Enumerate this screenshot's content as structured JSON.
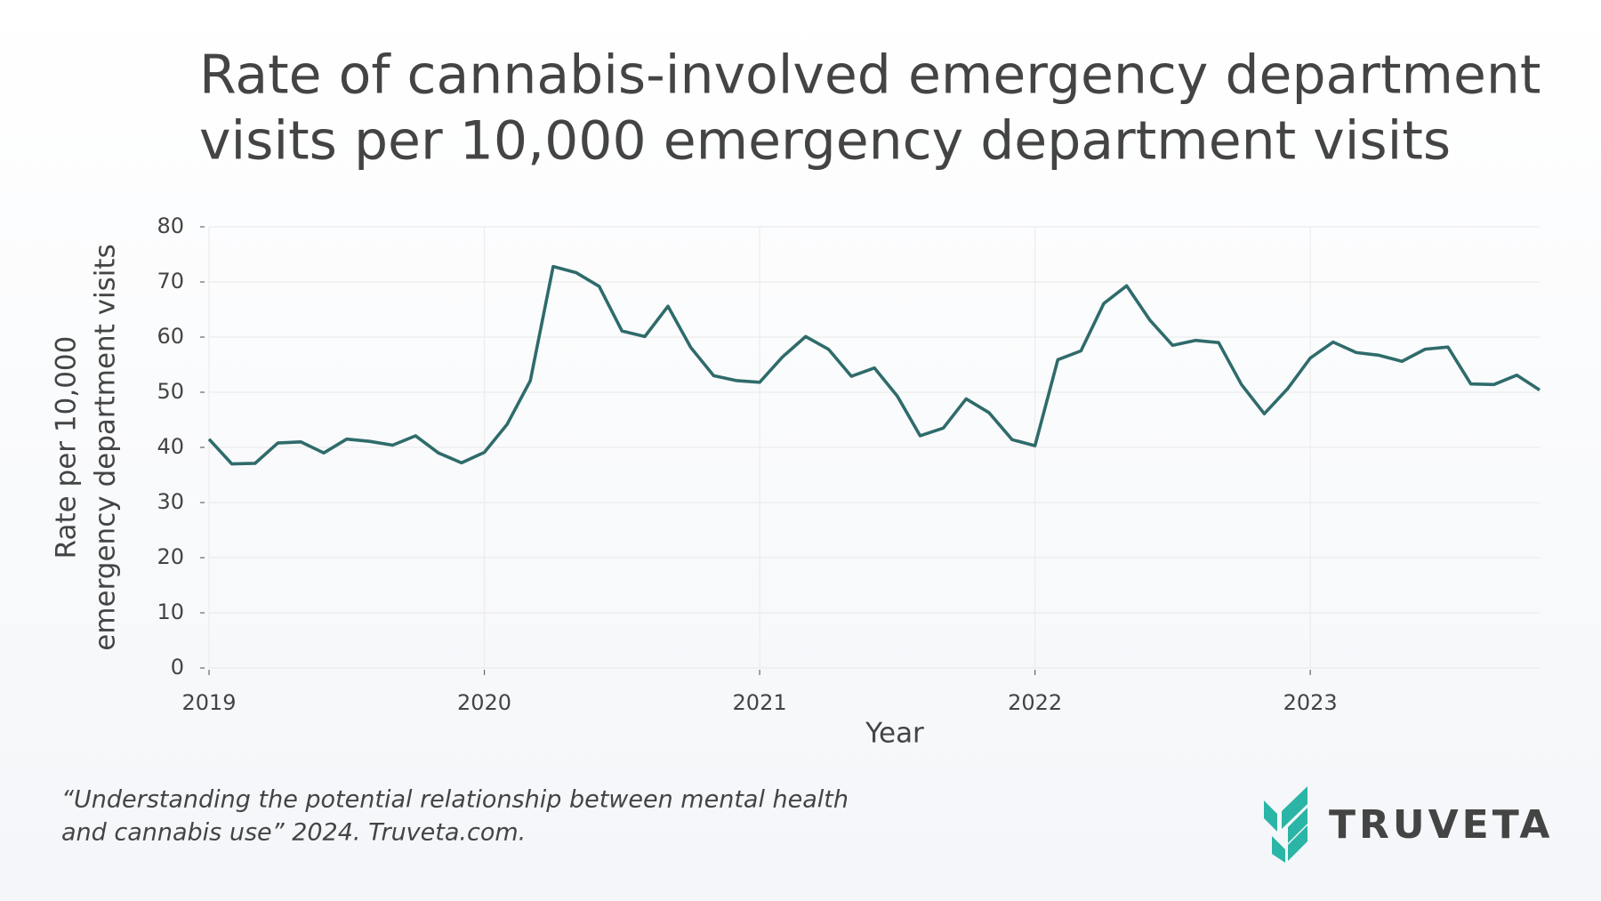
{
  "chart_data": {
    "type": "line",
    "title": [
      "Rate of cannabis-involved emergency department",
      "visits per 10,000 emergency department visits"
    ],
    "x_label": "Year",
    "y_label": [
      "Rate per 10,000",
      "emergency department visits"
    ],
    "x": [
      2019.0,
      2019.083,
      2019.167,
      2019.25,
      2019.333,
      2019.417,
      2019.5,
      2019.583,
      2019.667,
      2019.75,
      2019.833,
      2019.917,
      2020.0,
      2020.083,
      2020.167,
      2020.25,
      2020.333,
      2020.417,
      2020.5,
      2020.583,
      2020.667,
      2020.75,
      2020.833,
      2020.917,
      2021.0,
      2021.083,
      2021.167,
      2021.25,
      2021.333,
      2021.417,
      2021.5,
      2021.583,
      2021.667,
      2021.75,
      2021.833,
      2021.917,
      2022.0,
      2022.083,
      2022.167,
      2022.25,
      2022.333,
      2022.417,
      2022.5,
      2022.583,
      2022.667,
      2022.75,
      2022.833,
      2022.917,
      2023.0,
      2023.083,
      2023.167,
      2023.25,
      2023.333,
      2023.417,
      2023.5,
      2023.583,
      2023.667,
      2023.75,
      2023.833
    ],
    "series": [
      {
        "color": "#2f6b6b",
        "values": [
          41.5,
          37,
          37.1,
          40.8,
          41,
          39,
          41.5,
          41.1,
          40.4,
          42.1,
          39,
          37.2,
          39.1,
          44.2,
          52.1,
          72.8,
          71.7,
          69.2,
          61.1,
          60.1,
          65.6,
          58.1,
          53,
          52.1,
          51.8,
          56.4,
          60.1,
          57.8,
          52.9,
          54.4,
          49.3,
          42.1,
          43.5,
          48.8,
          46.3,
          41.4,
          40.3,
          55.9,
          57.5,
          66.1,
          69.3,
          63.1,
          58.5,
          59.4,
          59,
          51.4,
          46.1,
          50.6,
          56.2,
          59.1,
          57.2,
          56.7,
          55.6,
          57.8,
          58.2,
          51.5,
          51.4,
          53.1,
          50.4
        ]
      }
    ],
    "xlim": [
      2019,
      2023.833
    ],
    "xticks": [
      2019,
      2020,
      2021,
      2022,
      2023
    ],
    "ylim": [
      0,
      80
    ],
    "yticks": [
      0,
      10,
      20,
      30,
      40,
      50,
      60,
      70,
      80
    ],
    "grid": true,
    "source": [
      "“Understanding the potential relationship between mental health",
      "and cannabis use” 2024. Truveta.com."
    ],
    "logo": "TRUVETA"
  }
}
